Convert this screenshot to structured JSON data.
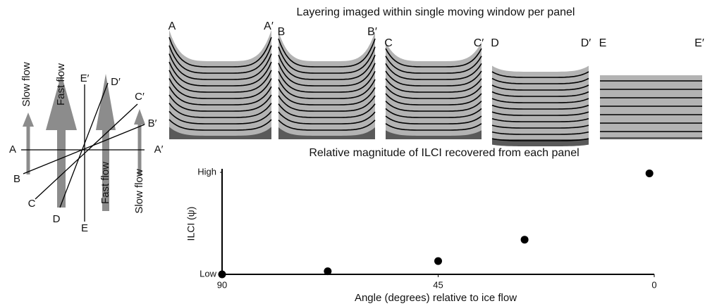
{
  "panels_title": "Layering imaged within single moving window per panel",
  "panels": [
    {
      "start": "A",
      "end": "A′"
    },
    {
      "start": "B",
      "end": "B′"
    },
    {
      "start": "C",
      "end": "C′"
    },
    {
      "start": "D",
      "end": "D′"
    },
    {
      "start": "E",
      "end": "E′"
    }
  ],
  "flow_diagram": {
    "arrows": [
      "Slow flow",
      "Fast flow",
      "Fast flow",
      "Slow flow"
    ],
    "line_starts": [
      "A",
      "B",
      "C",
      "D",
      "E"
    ],
    "line_ends": [
      "A′",
      "B′",
      "C′",
      "D′",
      "E′"
    ]
  },
  "chart_data": {
    "type": "scatter",
    "title": "Relative magnitude of ILCI recovered from each panel",
    "x_label": "Angle (degrees) relative to ice flow",
    "y_label": "ILCI (ψ)",
    "x": [
      90,
      68,
      45,
      27,
      1
    ],
    "values": [
      0,
      0.03,
      0.13,
      0.34,
      0.99
    ],
    "color": "#000000",
    "xlim": [
      90,
      0
    ],
    "xticks": [
      90,
      45,
      0
    ],
    "ylim": [
      0,
      1
    ],
    "yticks": [
      {
        "value": 0,
        "label": "Low"
      },
      {
        "value": 1,
        "label": "High"
      }
    ]
  }
}
